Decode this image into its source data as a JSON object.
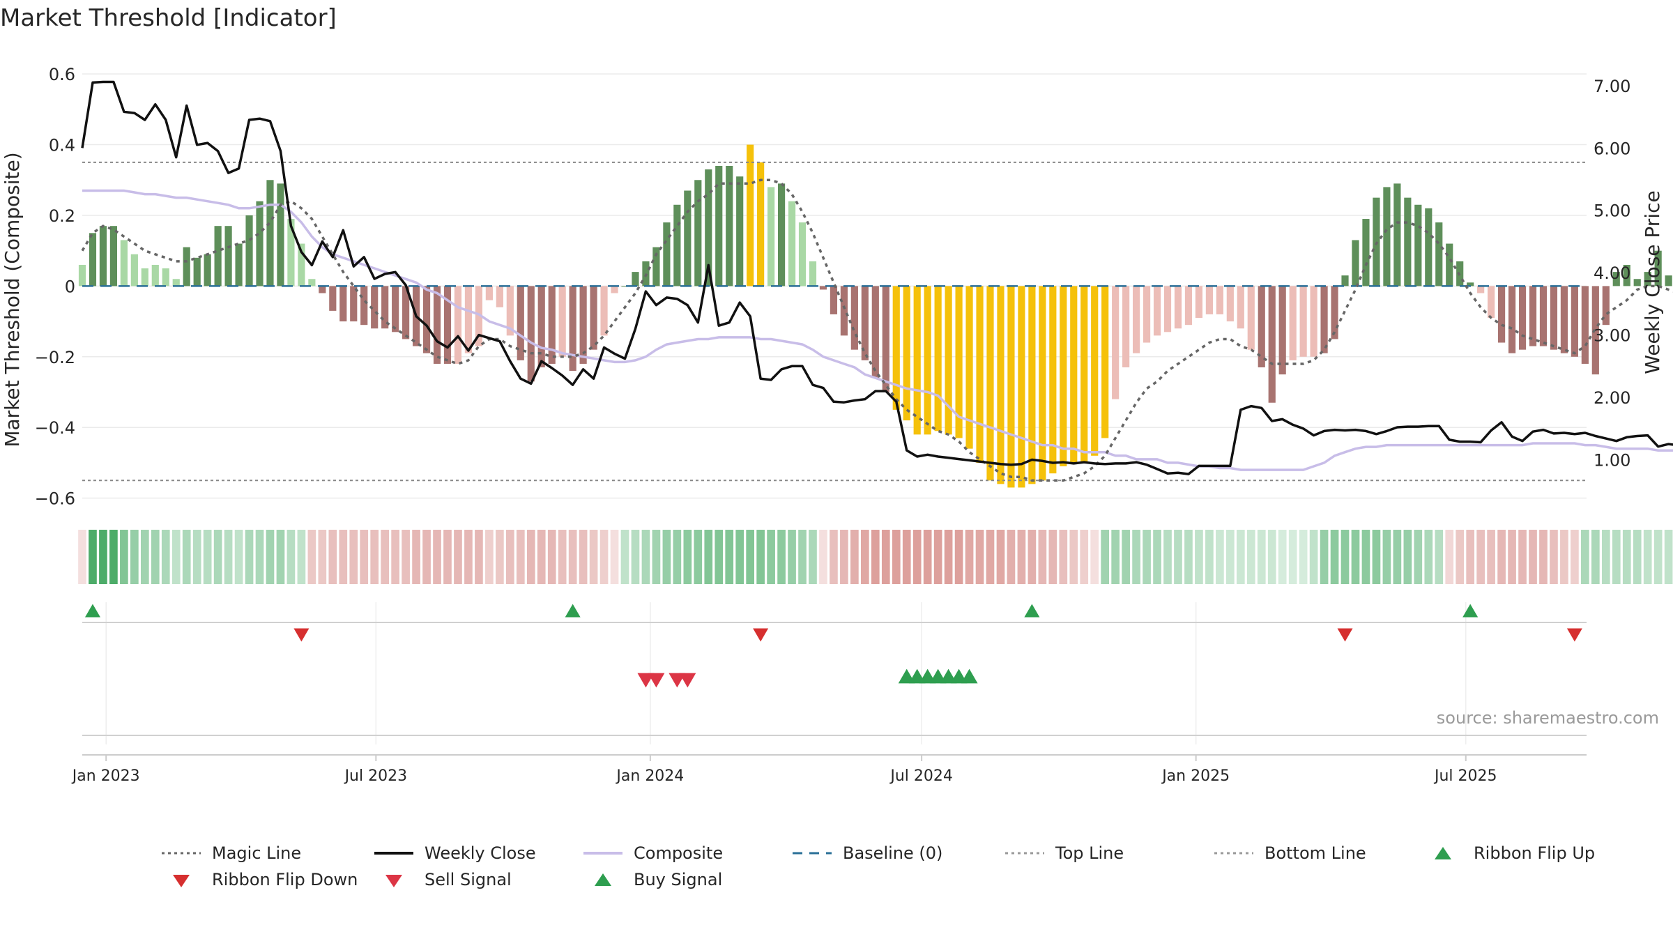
{
  "title": "Market Threshold [Indicator]",
  "source_note": "source: sharemaestro.com",
  "chart_data": {
    "type": "bar",
    "title": "Market Threshold [Indicator]",
    "ylabel": "Market Threshold (Composite)",
    "y2label": "Weekly Close Price",
    "ylim": [
      -0.65,
      0.62
    ],
    "y2lim": [
      0.1,
      7.3
    ],
    "yticks": [
      0.6,
      0.4,
      0.2,
      0,
      -0.2,
      -0.4,
      -0.6
    ],
    "ytick_labels": [
      "0.6",
      "0.4",
      "0.2",
      "0",
      "−0.2",
      "−0.4",
      "−0.6"
    ],
    "y2ticks": [
      7.0,
      6.0,
      5.0,
      4.0,
      3.0,
      2.0,
      1.0
    ],
    "y2tick_labels": [
      "7.00",
      "6.00",
      "5.00",
      "4.00",
      "3.00",
      "2.00",
      "1.00"
    ],
    "xlim": [
      "2022-12-16",
      "2025-09-20"
    ],
    "xticks": [
      "2023-01-01",
      "2023-07-01",
      "2024-01-01",
      "2024-07-01",
      "2025-01-01",
      "2025-07-01"
    ],
    "xtick_labels": [
      "Jan 2023",
      "Jul 2023",
      "Jan 2024",
      "Jul 2024",
      "Jan 2025",
      "Jul 2025"
    ],
    "first_week": "2022-12-16",
    "week_step_days": 7,
    "grid": true,
    "legend_position": "bottom",
    "top_line": 0.35,
    "bottom_line": -0.55,
    "baseline": 0,
    "composite_bars": [
      0.06,
      0.15,
      0.17,
      0.17,
      0.13,
      0.09,
      0.05,
      0.06,
      0.05,
      0.02,
      0.11,
      0.08,
      0.09,
      0.17,
      0.17,
      0.12,
      0.2,
      0.24,
      0.3,
      0.29,
      0.19,
      0.12,
      0.02,
      -0.02,
      -0.07,
      -0.1,
      -0.1,
      -0.11,
      -0.12,
      -0.12,
      -0.13,
      -0.15,
      -0.17,
      -0.19,
      -0.22,
      -0.22,
      -0.22,
      -0.19,
      -0.17,
      -0.04,
      -0.06,
      -0.14,
      -0.21,
      -0.27,
      -0.23,
      -0.22,
      -0.2,
      -0.24,
      -0.22,
      -0.18,
      -0.14,
      -0.02,
      0.0,
      0.04,
      0.07,
      0.11,
      0.18,
      0.23,
      0.27,
      0.3,
      0.33,
      0.34,
      0.34,
      0.31,
      0.4,
      0.35,
      0.28,
      0.29,
      0.24,
      0.18,
      0.07,
      -0.01,
      -0.08,
      -0.14,
      -0.18,
      -0.21,
      -0.26,
      -0.3,
      -0.35,
      -0.38,
      -0.42,
      -0.42,
      -0.41,
      -0.42,
      -0.43,
      -0.46,
      -0.5,
      -0.55,
      -0.56,
      -0.57,
      -0.57,
      -0.56,
      -0.55,
      -0.53,
      -0.51,
      -0.5,
      -0.5,
      -0.48,
      -0.43,
      -0.32,
      -0.23,
      -0.19,
      -0.16,
      -0.14,
      -0.13,
      -0.12,
      -0.11,
      -0.09,
      -0.08,
      -0.08,
      -0.1,
      -0.12,
      -0.18,
      -0.23,
      -0.33,
      -0.25,
      -0.21,
      -0.2,
      -0.2,
      -0.19,
      -0.15,
      0.03,
      0.13,
      0.19,
      0.25,
      0.28,
      0.29,
      0.25,
      0.23,
      0.22,
      0.18,
      0.12,
      0.07,
      0.01,
      -0.02,
      -0.09,
      -0.16,
      -0.19,
      -0.18,
      -0.17,
      -0.17,
      -0.18,
      -0.19,
      -0.2,
      -0.22,
      -0.25,
      -0.11,
      0.04,
      0.06,
      0.02,
      0.04,
      0.1,
      0.03,
      -0.01,
      -0.02,
      -0.05,
      -0.06,
      -0.05,
      -0.09,
      -0.15
    ],
    "bar_emphasis_threshold": 0.35,
    "magic_line": [
      0.1,
      0.15,
      0.17,
      0.16,
      0.14,
      0.12,
      0.1,
      0.09,
      0.08,
      0.07,
      0.07,
      0.08,
      0.09,
      0.1,
      0.11,
      0.12,
      0.13,
      0.15,
      0.18,
      0.23,
      0.24,
      0.22,
      0.19,
      0.14,
      0.09,
      0.04,
      0.0,
      -0.04,
      -0.07,
      -0.1,
      -0.12,
      -0.14,
      -0.16,
      -0.18,
      -0.2,
      -0.21,
      -0.22,
      -0.21,
      -0.17,
      -0.15,
      -0.15,
      -0.17,
      -0.18,
      -0.19,
      -0.19,
      -0.2,
      -0.2,
      -0.2,
      -0.19,
      -0.17,
      -0.14,
      -0.1,
      -0.06,
      -0.02,
      0.03,
      0.09,
      0.13,
      0.17,
      0.21,
      0.24,
      0.26,
      0.29,
      0.29,
      0.29,
      0.29,
      0.3,
      0.3,
      0.29,
      0.26,
      0.21,
      0.15,
      0.08,
      0.01,
      -0.06,
      -0.13,
      -0.19,
      -0.24,
      -0.28,
      -0.32,
      -0.35,
      -0.37,
      -0.39,
      -0.41,
      -0.42,
      -0.44,
      -0.47,
      -0.49,
      -0.51,
      -0.53,
      -0.54,
      -0.54,
      -0.55,
      -0.55,
      -0.55,
      -0.55,
      -0.54,
      -0.53,
      -0.51,
      -0.48,
      -0.43,
      -0.38,
      -0.33,
      -0.29,
      -0.27,
      -0.24,
      -0.22,
      -0.2,
      -0.18,
      -0.16,
      -0.15,
      -0.15,
      -0.17,
      -0.18,
      -0.2,
      -0.22,
      -0.22,
      -0.22,
      -0.22,
      -0.21,
      -0.18,
      -0.13,
      -0.07,
      -0.01,
      0.06,
      0.12,
      0.16,
      0.18,
      0.18,
      0.17,
      0.15,
      0.12,
      0.08,
      0.03,
      -0.02,
      -0.06,
      -0.09,
      -0.11,
      -0.12,
      -0.14,
      -0.15,
      -0.16,
      -0.17,
      -0.18,
      -0.19,
      -0.17,
      -0.12,
      -0.08,
      -0.06,
      -0.04,
      -0.01,
      0.0,
      0.0,
      -0.01,
      -0.02,
      -0.02,
      -0.03,
      -0.04,
      -0.04
    ],
    "weekly_close": [
      6.0,
      7.05,
      7.06,
      7.06,
      6.58,
      6.56,
      6.45,
      6.7,
      6.45,
      5.85,
      6.68,
      6.05,
      6.08,
      5.95,
      5.6,
      5.67,
      6.45,
      6.47,
      6.43,
      5.95,
      4.75,
      4.33,
      4.12,
      4.5,
      4.25,
      4.68,
      4.1,
      4.25,
      3.9,
      3.98,
      4.01,
      3.8,
      3.3,
      3.15,
      2.9,
      2.8,
      2.98,
      2.75,
      3.0,
      2.95,
      2.9,
      2.58,
      2.3,
      2.22,
      2.58,
      2.47,
      2.35,
      2.2,
      2.45,
      2.3,
      2.8,
      2.7,
      2.62,
      3.1,
      3.7,
      3.48,
      3.6,
      3.58,
      3.48,
      3.2,
      4.12,
      3.15,
      3.2,
      3.52,
      3.3,
      2.3,
      2.28,
      2.45,
      2.5,
      2.5,
      2.2,
      2.15,
      1.93,
      1.92,
      1.95,
      1.97,
      2.1,
      2.1,
      1.93,
      1.15,
      1.05,
      1.08,
      1.05,
      1.03,
      1.01,
      0.99,
      0.97,
      0.95,
      0.93,
      0.92,
      0.93,
      1.0,
      0.98,
      0.95,
      0.96,
      0.94,
      0.96,
      0.94,
      0.93,
      0.94,
      0.94,
      0.96,
      0.92,
      0.85,
      0.78,
      0.79,
      0.77,
      0.9,
      0.9,
      0.9,
      0.9,
      1.8,
      1.86,
      1.83,
      1.62,
      1.65,
      1.56,
      1.5,
      1.39,
      1.46,
      1.48,
      1.47,
      1.48,
      1.46,
      1.41,
      1.46,
      1.52,
      1.53,
      1.53,
      1.54,
      1.54,
      1.32,
      1.29,
      1.29,
      1.28,
      1.47,
      1.6,
      1.37,
      1.3,
      1.45,
      1.48,
      1.42,
      1.43,
      1.41,
      1.43,
      1.38,
      1.34,
      1.3,
      1.36,
      1.38,
      1.39,
      1.21,
      1.25,
      1.23
    ],
    "composite_line": [
      0.27,
      0.27,
      0.27,
      0.27,
      0.27,
      0.265,
      0.26,
      0.26,
      0.255,
      0.25,
      0.25,
      0.245,
      0.24,
      0.235,
      0.23,
      0.22,
      0.22,
      0.225,
      0.23,
      0.23,
      0.21,
      0.18,
      0.14,
      0.11,
      0.09,
      0.08,
      0.07,
      0.06,
      0.05,
      0.04,
      0.03,
      0.02,
      0.01,
      -0.01,
      -0.02,
      -0.04,
      -0.06,
      -0.07,
      -0.08,
      -0.1,
      -0.11,
      -0.12,
      -0.14,
      -0.16,
      -0.175,
      -0.18,
      -0.19,
      -0.195,
      -0.2,
      -0.205,
      -0.21,
      -0.215,
      -0.215,
      -0.21,
      -0.2,
      -0.18,
      -0.165,
      -0.16,
      -0.155,
      -0.15,
      -0.15,
      -0.145,
      -0.145,
      -0.145,
      -0.145,
      -0.15,
      -0.15,
      -0.155,
      -0.16,
      -0.165,
      -0.18,
      -0.2,
      -0.21,
      -0.22,
      -0.23,
      -0.25,
      -0.26,
      -0.27,
      -0.28,
      -0.29,
      -0.295,
      -0.3,
      -0.31,
      -0.34,
      -0.37,
      -0.38,
      -0.39,
      -0.4,
      -0.41,
      -0.42,
      -0.43,
      -0.44,
      -0.45,
      -0.45,
      -0.46,
      -0.46,
      -0.47,
      -0.47,
      -0.47,
      -0.48,
      -0.48,
      -0.49,
      -0.49,
      -0.49,
      -0.5,
      -0.5,
      -0.505,
      -0.51,
      -0.51,
      -0.515,
      -0.515,
      -0.52,
      -0.52,
      -0.52,
      -0.52,
      -0.52,
      -0.52,
      -0.52,
      -0.51,
      -0.5,
      -0.48,
      -0.47,
      -0.46,
      -0.455,
      -0.455,
      -0.45,
      -0.45,
      -0.45,
      -0.45,
      -0.45,
      -0.45,
      -0.45,
      -0.45,
      -0.45,
      -0.45,
      -0.45,
      -0.45,
      -0.45,
      -0.45,
      -0.445,
      -0.445,
      -0.445,
      -0.445,
      -0.445,
      -0.45,
      -0.45,
      -0.455,
      -0.46,
      -0.46,
      -0.46,
      -0.46,
      -0.465,
      -0.465,
      -0.465,
      -0.465,
      -0.465,
      -0.465,
      -0.465
    ],
    "ribbon": [
      -0.2,
      0.85,
      0.85,
      0.85,
      0.6,
      0.5,
      0.45,
      0.45,
      0.4,
      0.3,
      0.4,
      0.35,
      0.35,
      0.4,
      0.35,
      0.3,
      0.4,
      0.4,
      0.45,
      0.45,
      0.35,
      0.3,
      -0.35,
      -0.35,
      -0.4,
      -0.4,
      -0.4,
      -0.4,
      -0.4,
      -0.4,
      -0.4,
      -0.4,
      -0.45,
      -0.45,
      -0.45,
      -0.45,
      -0.45,
      -0.45,
      -0.45,
      -0.3,
      -0.35,
      -0.4,
      -0.4,
      -0.45,
      -0.45,
      -0.45,
      -0.4,
      -0.4,
      -0.4,
      -0.35,
      -0.3,
      -0.2,
      0.3,
      0.35,
      0.4,
      0.45,
      0.5,
      0.5,
      0.55,
      0.55,
      0.6,
      0.6,
      0.6,
      0.6,
      0.6,
      0.6,
      0.55,
      0.55,
      0.5,
      0.45,
      0.4,
      -0.2,
      -0.4,
      -0.45,
      -0.5,
      -0.55,
      -0.6,
      -0.6,
      -0.6,
      -0.6,
      -0.6,
      -0.6,
      -0.6,
      -0.6,
      -0.6,
      -0.55,
      -0.55,
      -0.55,
      -0.55,
      -0.5,
      -0.5,
      -0.5,
      -0.45,
      -0.45,
      -0.4,
      -0.35,
      -0.3,
      -0.2,
      0.45,
      0.45,
      0.45,
      0.4,
      0.4,
      0.4,
      0.35,
      0.35,
      0.35,
      0.3,
      0.3,
      0.25,
      0.25,
      0.25,
      0.25,
      0.25,
      0.25,
      0.2,
      0.2,
      0.2,
      0.3,
      0.5,
      0.55,
      0.55,
      0.55,
      0.55,
      0.55,
      0.5,
      0.5,
      0.5,
      0.45,
      0.4,
      0.35,
      -0.25,
      -0.35,
      -0.4,
      -0.4,
      -0.4,
      -0.45,
      -0.45,
      -0.45,
      -0.45,
      -0.45,
      -0.4,
      -0.35,
      -0.3,
      0.4,
      0.4,
      0.35,
      0.35,
      0.35,
      0.35,
      0.3,
      0.3,
      0.3,
      0.3,
      0.25,
      0.25,
      -0.2
    ],
    "ribbon_flip_up_dates": [
      "2022-12-23",
      "2023-11-10",
      "2024-09-13",
      "2025-07-04"
    ],
    "ribbon_flip_down_dates": [
      "2023-05-12",
      "2024-03-15",
      "2025-04-11",
      "2025-09-12"
    ],
    "sell_signal_dates": [
      "2023-12-29",
      "2024-01-05",
      "2024-01-19",
      "2024-01-26"
    ],
    "buy_signal_dates": [
      "2024-06-21",
      "2024-06-28",
      "2024-07-05",
      "2024-07-12",
      "2024-07-19",
      "2024-07-26",
      "2024-08-02"
    ],
    "legend": [
      {
        "label": "Magic Line",
        "icon": "dotted-line",
        "color": "#666666"
      },
      {
        "label": "Weekly Close",
        "icon": "solid-line",
        "color": "#111111"
      },
      {
        "label": "Composite",
        "icon": "solid-line",
        "color": "#c8bde8"
      },
      {
        "label": "Baseline (0)",
        "icon": "dashed-line",
        "color": "#2a6f97"
      },
      {
        "label": "Top Line",
        "icon": "dotted-line",
        "color": "#999999"
      },
      {
        "label": "Bottom Line",
        "icon": "dotted-line",
        "color": "#999999"
      },
      {
        "label": "Ribbon Flip Up",
        "icon": "triangle-up",
        "color": "#2e9e4f"
      },
      {
        "label": "Ribbon Flip Down",
        "icon": "triangle-down",
        "color": "#d62f2f"
      },
      {
        "label": "Sell Signal",
        "icon": "triangle-down",
        "color": "#dc3545"
      },
      {
        "label": "Buy Signal",
        "icon": "triangle-up",
        "color": "#2e9e4f"
      }
    ],
    "colors": {
      "pos_dark": "#5e8f5a",
      "pos_light": "#a9d8a5",
      "neg_dark": "#a87370",
      "neg_light": "#ecbdb7",
      "extreme": "#f5c10a",
      "ribbon_pos": "#2e9e4f",
      "ribbon_neg": "#c6605a"
    }
  }
}
